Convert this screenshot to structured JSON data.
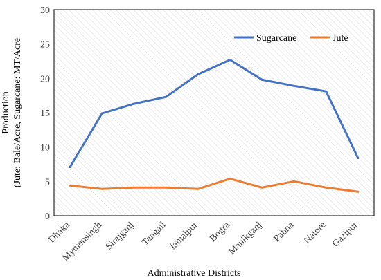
{
  "chart_data": {
    "type": "line",
    "title": "",
    "xlabel": "Administrative Districts",
    "ylabel_line1": "Production",
    "ylabel_line2": "(Jute: Bale/Acre, Sugarcane: MT/Acre",
    "categories": [
      "Dhaka",
      "Mymensingh",
      "Sirajganj",
      "Tangail",
      "Jamalpur",
      "Bogra",
      "Manikganj",
      "Pabna",
      "Natore",
      "Gazipur"
    ],
    "ylim": [
      0,
      30
    ],
    "yticks": [
      0,
      5,
      10,
      15,
      20,
      25,
      30
    ],
    "grid": false,
    "legend_position": "top-right",
    "series": [
      {
        "name": "Sugarcane",
        "color": "#4472C4",
        "values": [
          7.1,
          14.9,
          16.3,
          17.3,
          20.6,
          22.7,
          19.8,
          18.9,
          18.1,
          8.4
        ]
      },
      {
        "name": "Jute",
        "color": "#ED7D31",
        "values": [
          4.4,
          3.9,
          4.1,
          4.1,
          3.9,
          5.4,
          4.1,
          5.0,
          4.1,
          3.5
        ]
      }
    ]
  }
}
